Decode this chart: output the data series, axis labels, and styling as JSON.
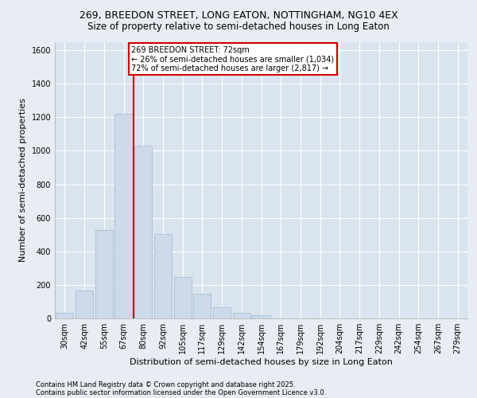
{
  "title_line1": "269, BREEDON STREET, LONG EATON, NOTTINGHAM, NG10 4EX",
  "title_line2": "Size of property relative to semi-detached houses in Long Eaton",
  "xlabel": "Distribution of semi-detached houses by size in Long Eaton",
  "ylabel": "Number of semi-detached properties",
  "footnote1": "Contains HM Land Registry data © Crown copyright and database right 2025.",
  "footnote2": "Contains public sector information licensed under the Open Government Licence v3.0.",
  "bar_labels": [
    "30sqm",
    "42sqm",
    "55sqm",
    "67sqm",
    "80sqm",
    "92sqm",
    "105sqm",
    "117sqm",
    "129sqm",
    "142sqm",
    "154sqm",
    "167sqm",
    "179sqm",
    "192sqm",
    "204sqm",
    "217sqm",
    "229sqm",
    "242sqm",
    "254sqm",
    "267sqm",
    "279sqm"
  ],
  "bar_values": [
    35,
    165,
    525,
    1220,
    1030,
    505,
    245,
    145,
    65,
    35,
    20,
    0,
    0,
    0,
    0,
    0,
    0,
    0,
    0,
    0,
    0
  ],
  "bar_color": "#ccdaea",
  "bar_edge_color": "#aabfcf",
  "vline_x": 3.5,
  "vline_color": "#cc0000",
  "annotation_text_line1": "269 BREEDON STREET: 72sqm",
  "annotation_text_line2": "← 26% of semi-detached houses are smaller (1,034)",
  "annotation_text_line3": "72% of semi-detached houses are larger (2,817) →",
  "annotation_box_edgecolor": "#cc0000",
  "annotation_box_facecolor": "#ffffff",
  "ylim": [
    0,
    1650
  ],
  "yticks": [
    0,
    200,
    400,
    600,
    800,
    1000,
    1200,
    1400,
    1600
  ],
  "background_color": "#e8edf3",
  "plot_background": "#dae4ef",
  "grid_color": "#ffffff",
  "title_fontsize": 9,
  "subtitle_fontsize": 8.5,
  "ylabel_fontsize": 8,
  "xlabel_fontsize": 8,
  "tick_fontsize": 7,
  "annotation_fontsize": 7,
  "footnote_fontsize": 6
}
